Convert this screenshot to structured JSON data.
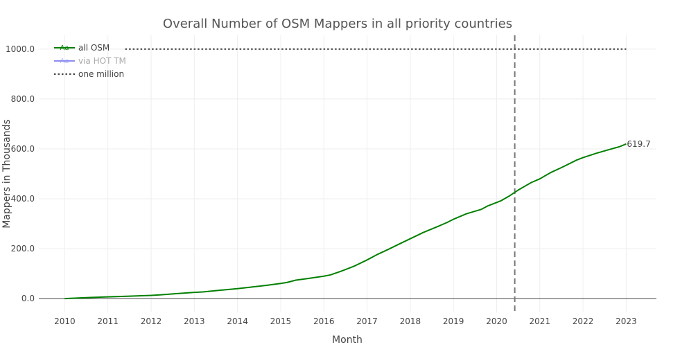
{
  "chart_data": {
    "type": "line",
    "title": "Overall Number of OSM Mappers in all priority countries",
    "xlabel": "Month",
    "ylabel": "Mappers in Thousands",
    "xlim": [
      2009.4,
      2023.7
    ],
    "ylim": [
      -55,
      1055
    ],
    "x_ticks": [
      2010,
      2011,
      2012,
      2013,
      2014,
      2015,
      2016,
      2017,
      2018,
      2019,
      2020,
      2021,
      2022,
      2023
    ],
    "x_tick_labels": [
      "2010",
      "2011",
      "2012",
      "2013",
      "2014",
      "2015",
      "2016",
      "2017",
      "2018",
      "2019",
      "2020",
      "2021",
      "2022",
      "2023"
    ],
    "y_ticks": [
      0,
      200,
      400,
      600,
      800,
      1000
    ],
    "y_tick_labels": [
      "0.0",
      "200.0",
      "400.0",
      "600.0",
      "800.0",
      "1000.0"
    ],
    "grid": true,
    "legend_position": "top-left",
    "series": [
      {
        "name": "all OSM",
        "color": "#008000",
        "style": "solid",
        "x": [
          2010.0,
          2010.5,
          2011.0,
          2011.5,
          2012.0,
          2012.2,
          2012.5,
          2013.0,
          2013.2,
          2013.5,
          2014.0,
          2014.3,
          2014.7,
          2015.0,
          2015.15,
          2015.35,
          2015.6,
          2016.0,
          2016.15,
          2016.4,
          2016.7,
          2017.0,
          2017.25,
          2017.5,
          2017.7,
          2018.0,
          2018.3,
          2018.65,
          2018.85,
          2019.0,
          2019.3,
          2019.65,
          2019.8,
          2020.1,
          2020.3,
          2020.5,
          2020.8,
          2021.0,
          2021.25,
          2021.5,
          2021.85,
          2022.0,
          2022.3,
          2022.6,
          2022.85,
          2023.0
        ],
        "y": [
          0,
          4,
          7,
          10,
          13,
          15,
          19,
          25,
          27,
          32,
          40,
          46,
          54,
          61,
          65,
          74,
          80,
          90,
          95,
          110,
          130,
          155,
          178,
          198,
          215,
          240,
          265,
          290,
          305,
          318,
          340,
          358,
          372,
          392,
          412,
          435,
          465,
          480,
          505,
          525,
          555,
          565,
          582,
          597,
          609,
          619.7
        ],
        "end_label": "619.7"
      },
      {
        "name": "via HOT TM",
        "color": "#8c8cf0",
        "style": "solid",
        "legend_only": true,
        "x": [],
        "y": []
      },
      {
        "name": "one million",
        "color": "#444444",
        "style": "dotted",
        "x": [
          2011.4,
          2023.0
        ],
        "y": [
          1000,
          1000
        ]
      }
    ],
    "annotations": [
      {
        "type": "vline",
        "x": 2020.42,
        "color": "#777777",
        "style": "dashed"
      }
    ]
  },
  "legend_glyph": "Aa"
}
